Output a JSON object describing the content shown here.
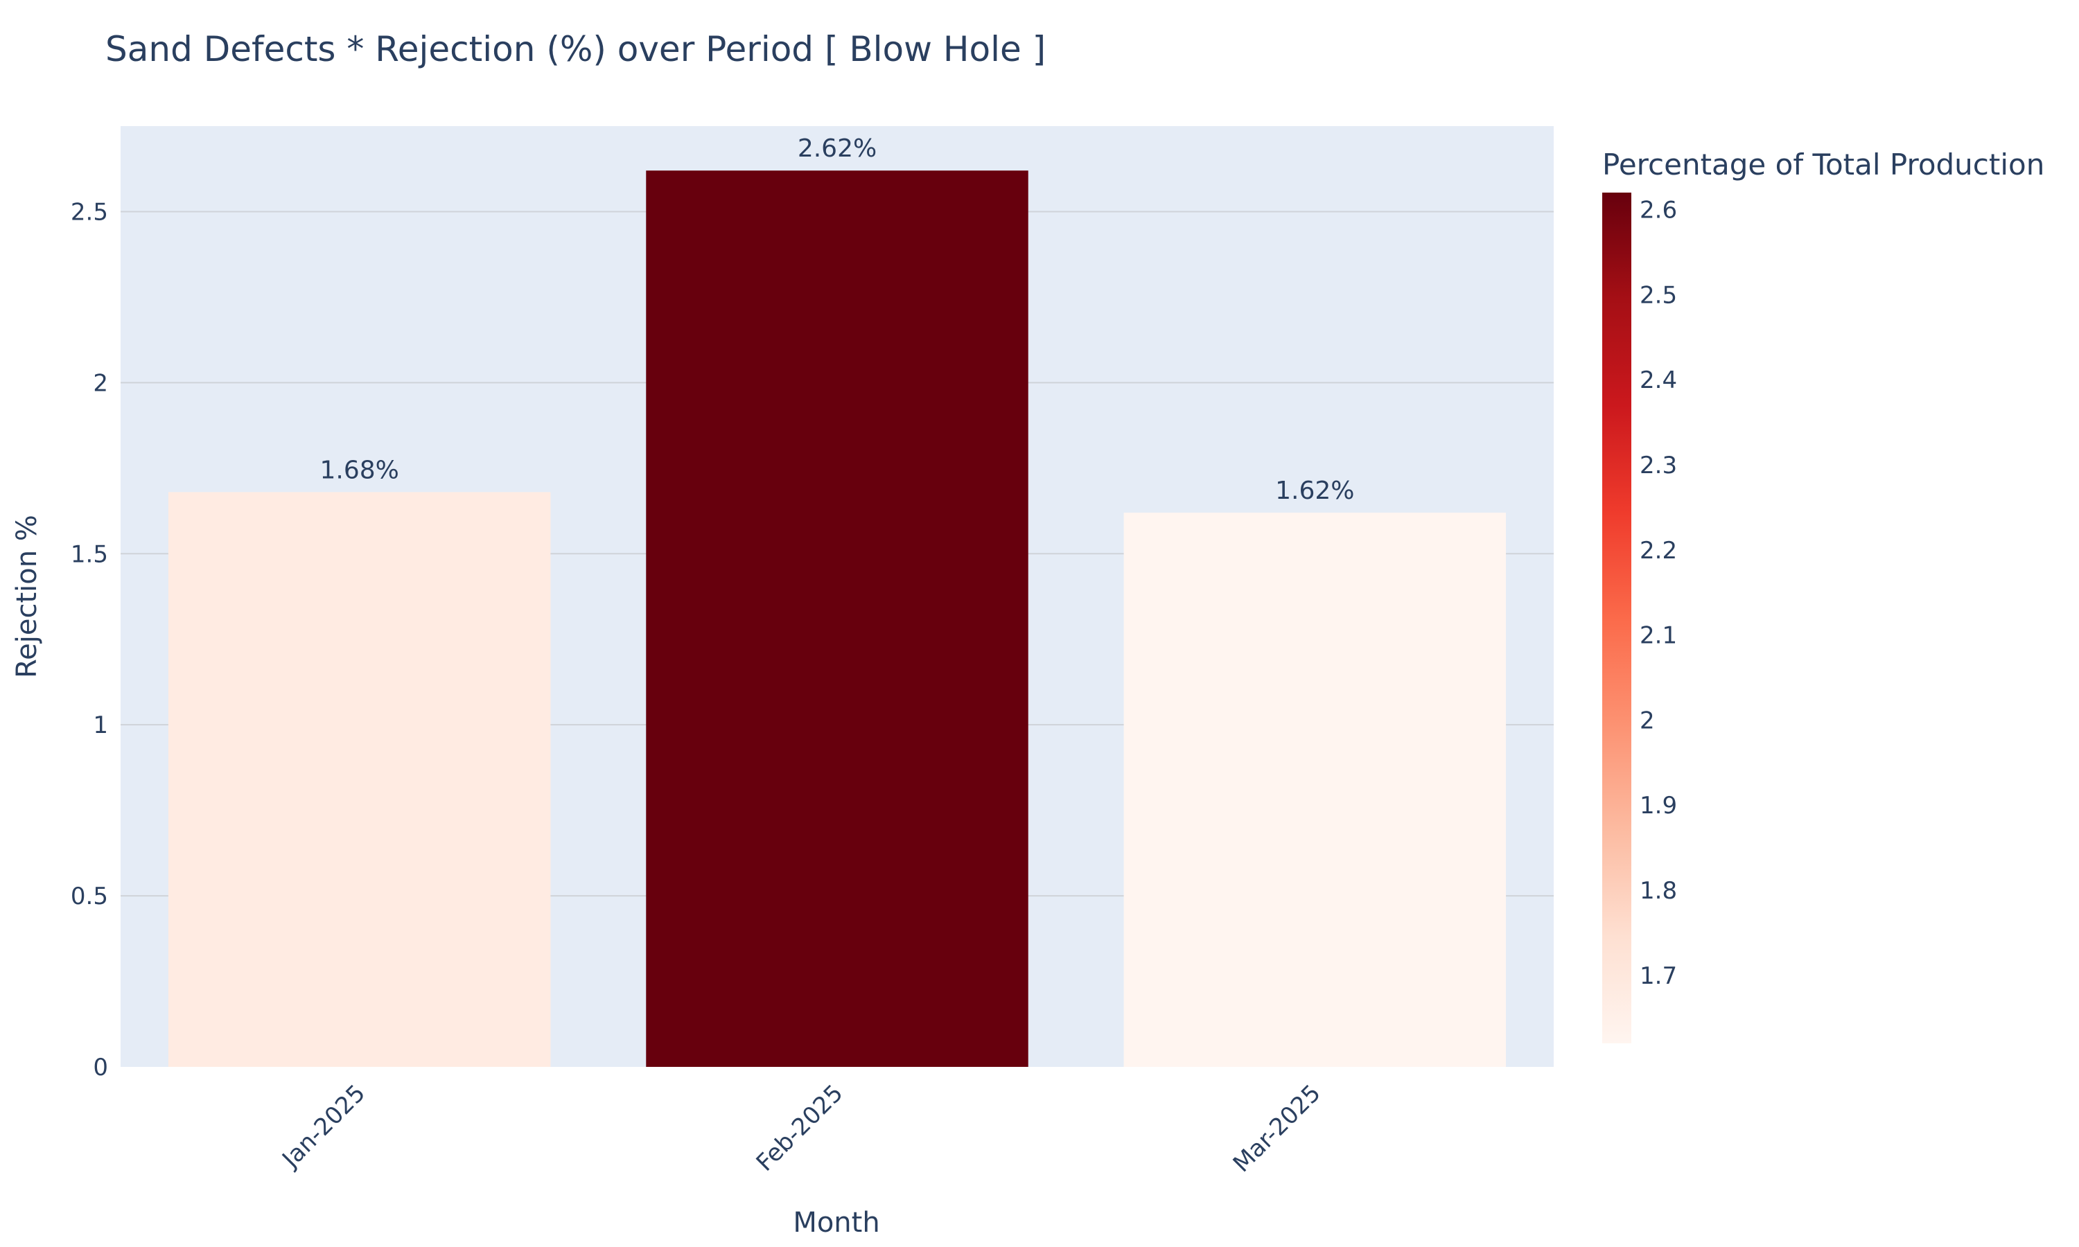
{
  "chart_data": {
    "type": "bar",
    "title": "Sand Defects * Rejection (%) over Period [ Blow Hole ]",
    "xlabel": "Month",
    "ylabel": "Rejection %",
    "categories": [
      "Jan-2025",
      "Feb-2025",
      "Mar-2025"
    ],
    "values": [
      1.68,
      2.62,
      1.62
    ],
    "data_labels": [
      "1.68%",
      "2.62%",
      "1.62%"
    ],
    "ylim": [
      0,
      2.75
    ],
    "yticks": [
      {
        "value": 0,
        "label": "0"
      },
      {
        "value": 0.5,
        "label": "0.5"
      },
      {
        "value": 1,
        "label": "1"
      },
      {
        "value": 1.5,
        "label": "1.5"
      },
      {
        "value": 2,
        "label": "2"
      },
      {
        "value": 2.5,
        "label": "2.5"
      }
    ],
    "grid": true,
    "colorbar": {
      "title": "Percentage of Total Production",
      "range": [
        1.62,
        2.62
      ],
      "colorscale": "Reds",
      "ticks": [
        {
          "value": 1.7,
          "label": "1.7"
        },
        {
          "value": 1.8,
          "label": "1.8"
        },
        {
          "value": 1.9,
          "label": "1.9"
        },
        {
          "value": 2.0,
          "label": "2"
        },
        {
          "value": 2.1,
          "label": "2.1"
        },
        {
          "value": 2.2,
          "label": "2.2"
        },
        {
          "value": 2.3,
          "label": "2.3"
        },
        {
          "value": 2.4,
          "label": "2.4"
        },
        {
          "value": 2.5,
          "label": "2.5"
        },
        {
          "value": 2.6,
          "label": "2.6"
        }
      ]
    },
    "colors": {
      "plot_bg": "#e5ecf6",
      "grid": "#cfd3d9",
      "text": "#2a3f5f",
      "reds_scale": [
        "#fff5f0",
        "#fee0d2",
        "#fcbba1",
        "#fc9272",
        "#fb6a4a",
        "#ef3b2c",
        "#cb181d",
        "#a50f15",
        "#67000d"
      ]
    }
  }
}
